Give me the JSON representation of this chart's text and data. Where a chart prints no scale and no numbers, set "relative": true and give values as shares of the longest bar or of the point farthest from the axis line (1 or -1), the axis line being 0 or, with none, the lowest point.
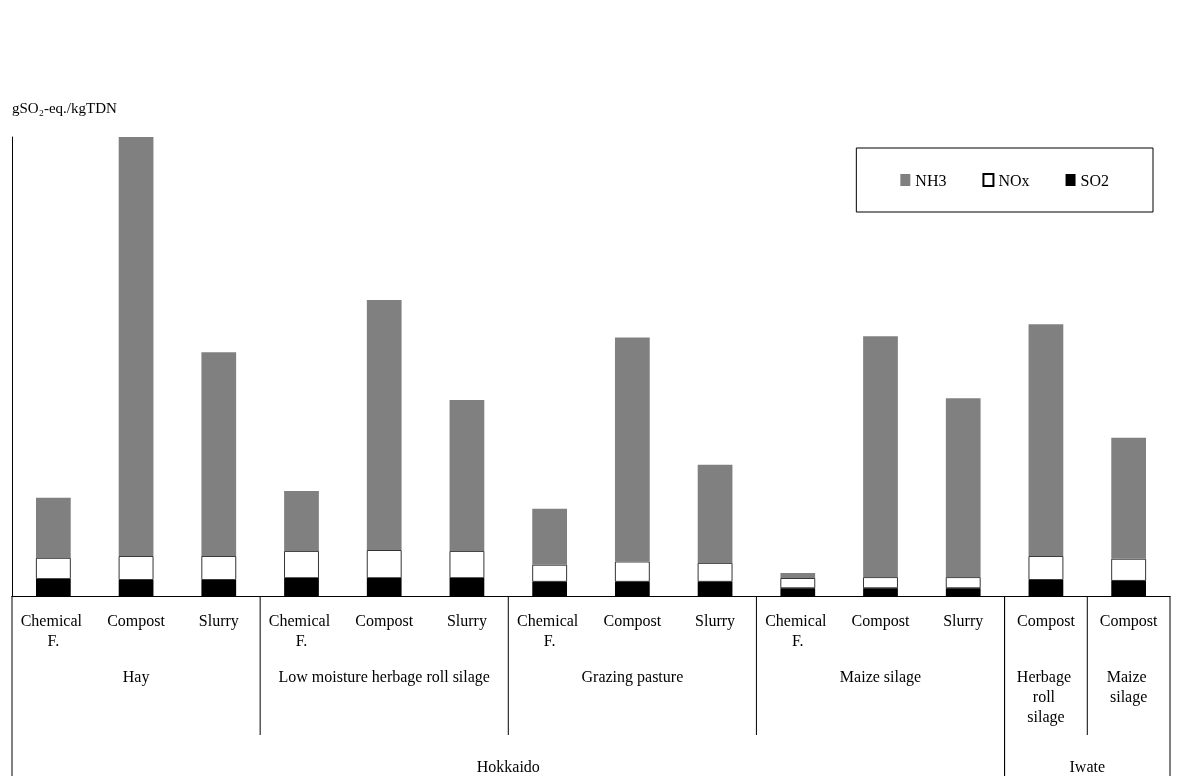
{
  "chart_data": {
    "type": "bar",
    "ylabel": "gSO₂-eq./kgTDN",
    "relative": true,
    "stacked": true,
    "categories": [
      "Chemical F.",
      "Compost",
      "Slurry",
      "Chemical F.",
      "Compost",
      "Slurry",
      "Chemical F.",
      "Compost",
      "Slurry",
      "Chemical F.",
      "Compost",
      "Slurry",
      "Compost",
      "Compost"
    ],
    "series": [
      {
        "name": "SO2",
        "color": "#000000",
        "values": [
          0.037,
          0.035,
          0.035,
          0.039,
          0.039,
          0.039,
          0.031,
          0.031,
          0.031,
          0.017,
          0.017,
          0.017,
          0.035,
          0.033
        ]
      },
      {
        "name": "NOx",
        "color": "#ffffff",
        "values": [
          0.046,
          0.052,
          0.052,
          0.059,
          0.061,
          0.059,
          0.037,
          0.044,
          0.041,
          0.022,
          0.024,
          0.024,
          0.052,
          0.048
        ]
      },
      {
        "name": "NH3",
        "color": "#808080",
        "values": [
          0.131,
          0.913,
          0.444,
          0.131,
          0.545,
          0.329,
          0.122,
          0.488,
          0.214,
          0.011,
          0.525,
          0.39,
          0.505,
          0.264
        ]
      }
    ],
    "annotations": [
      "Hay",
      "Low moisture herbage roll silage",
      "Grazing pasture",
      "Maize silage",
      "Herbage roll silage",
      "Maize silage",
      "Hokkaido",
      "Iwate"
    ],
    "legend": "top right",
    "grid": false
  }
}
